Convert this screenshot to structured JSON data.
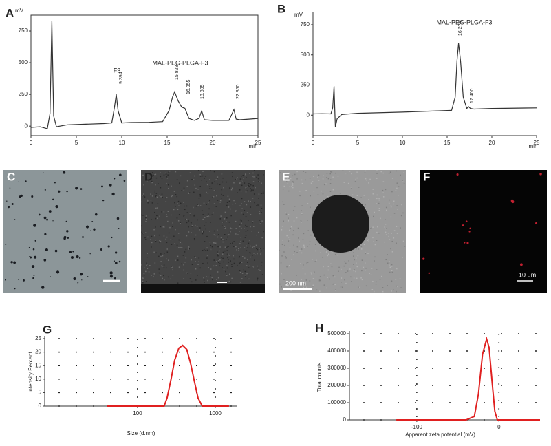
{
  "chart_data": [
    {
      "type": "line",
      "panel": "A",
      "y_label": "mV",
      "x_label": "min",
      "xlim": [
        0,
        25
      ],
      "ylim": [
        -75,
        875
      ],
      "xticks": [
        0,
        5,
        10,
        15,
        20,
        25
      ],
      "yticks": [
        0,
        250,
        500,
        750
      ],
      "grid": false,
      "x": [
        0,
        1,
        1.8,
        2.1,
        2.3,
        2.5,
        2.8,
        4,
        6,
        8,
        8.9,
        9.2,
        9.394,
        9.6,
        10,
        11,
        13,
        14.5,
        15.2,
        15.6,
        15.828,
        16.2,
        16.6,
        16.955,
        17.4,
        18,
        18.5,
        18.805,
        19.1,
        20,
        21.8,
        22.1,
        22.35,
        22.6,
        23,
        24,
        25
      ],
      "series": [
        {
          "color": "#333333",
          "values": [
            -10,
            -5,
            -20,
            100,
            830,
            80,
            -5,
            10,
            15,
            20,
            25,
            150,
            250,
            120,
            25,
            28,
            30,
            35,
            120,
            230,
            270,
            200,
            150,
            140,
            60,
            45,
            60,
            120,
            50,
            45,
            45,
            90,
            130,
            55,
            50,
            55,
            60
          ]
        }
      ],
      "annotations": [
        "F3",
        "9.394",
        "MAL-PEG-PLGA-F3",
        "15.828",
        "16.955",
        "18.805",
        "22.350"
      ]
    },
    {
      "type": "line",
      "panel": "B",
      "y_label": "mV",
      "x_label": "min",
      "xlim": [
        0,
        25
      ],
      "ylim": [
        -170,
        830
      ],
      "xticks": [
        0,
        5,
        10,
        15,
        20,
        25
      ],
      "yticks": [
        0,
        250,
        500,
        750
      ],
      "grid": false,
      "x": [
        0,
        1,
        2,
        2.2,
        2.35,
        2.5,
        2.7,
        3.2,
        5,
        10,
        14,
        15.5,
        15.9,
        16.1,
        16.274,
        16.5,
        16.8,
        17.2,
        17.4,
        17.6,
        18,
        20,
        25
      ],
      "series": [
        {
          "color": "#333333",
          "values": [
            10,
            12,
            10,
            60,
            240,
            -100,
            -30,
            5,
            15,
            25,
            35,
            40,
            150,
            450,
            595,
            450,
            150,
            55,
            70,
            55,
            50,
            55,
            60
          ]
        }
      ],
      "annotations": [
        "MAL-PEG-PLGA-F3",
        "16.274",
        "17.400"
      ]
    },
    {
      "type": "line",
      "panel": "G",
      "y_label": "Intensity Percent",
      "x_label": "Size (d.nm)",
      "xscale": "log",
      "xlim": [
        6.4,
        1920
      ],
      "ylim": [
        0,
        25
      ],
      "xticks": [
        100,
        1000
      ],
      "yticks": [
        0,
        5,
        10,
        15,
        20,
        25
      ],
      "grid": true,
      "x": [
        40,
        190,
        220,
        240,
        270,
        300,
        340,
        380,
        430,
        480,
        540,
        600,
        680,
        1000,
        1500
      ],
      "series": [
        {
          "color": "#e02020",
          "values": [
            0,
            0,
            0,
            3,
            10,
            17,
            21.5,
            22.5,
            21,
            16,
            9,
            3,
            0,
            0,
            0
          ]
        }
      ],
      "annotations": []
    },
    {
      "type": "line",
      "panel": "H",
      "y_label": "Total counts",
      "x_label": "Apparent zeta potential (mV)",
      "xlim": [
        -182,
        50
      ],
      "ylim": [
        0,
        500000
      ],
      "xticks": [
        -100,
        0
      ],
      "yticks": [
        0,
        100000,
        200000,
        300000,
        400000,
        500000
      ],
      "grid": true,
      "x": [
        -125,
        -40,
        -30,
        -25,
        -20,
        -15,
        -12,
        -8,
        -5,
        -2,
        50
      ],
      "series": [
        {
          "color": "#e02020",
          "values": [
            0,
            0,
            20000,
            150000,
            380000,
            470000,
            420000,
            200000,
            50000,
            0,
            0
          ]
        }
      ],
      "annotations": []
    }
  ],
  "images": [
    {
      "label": "C"
    },
    {
      "label": "D"
    },
    {
      "label": "E",
      "scale_label": "200 nm"
    },
    {
      "label": "F",
      "scale_label": "10 μm"
    }
  ]
}
